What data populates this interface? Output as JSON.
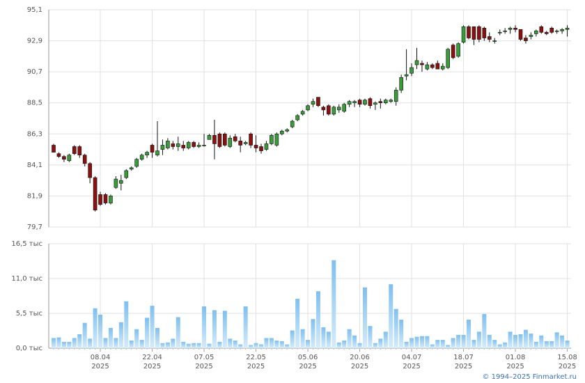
{
  "chart_data": [
    {
      "type": "candlestick",
      "x": [
        "26.03.2025",
        "27.03.2025",
        "28.03.2025",
        "31.03.2025",
        "01.04.2025",
        "02.04.2025",
        "03.04.2025",
        "04.04.2025",
        "07.04.2025",
        "08.04.2025",
        "09.04.2025",
        "10.04.2025",
        "11.04.2025",
        "14.04.2025",
        "15.04.2025",
        "16.04.2025",
        "17.04.2025",
        "18.04.2025",
        "21.04.2025",
        "22.04.2025",
        "23.04.2025",
        "24.04.2025",
        "25.04.2025",
        "28.04.2025",
        "29.04.2025",
        "30.04.2025",
        "02.05.2025",
        "05.05.2025",
        "06.05.2025",
        "07.05.2025",
        "08.05.2025",
        "12.05.2025",
        "13.05.2025",
        "14.05.2025",
        "15.05.2025",
        "16.05.2025",
        "19.05.2025",
        "20.05.2025",
        "21.05.2025",
        "22.05.2025",
        "23.05.2025",
        "26.05.2025",
        "27.05.2025",
        "28.05.2025",
        "29.05.2025",
        "30.05.2025",
        "02.06.2025",
        "03.06.2025",
        "04.06.2025",
        "05.06.2025",
        "06.06.2025",
        "09.06.2025",
        "10.06.2025",
        "11.06.2025",
        "13.06.2025",
        "16.06.2025",
        "17.06.2025",
        "18.06.2025",
        "19.06.2025",
        "20.06.2025",
        "23.06.2025",
        "24.06.2025",
        "25.06.2025",
        "26.06.2025",
        "27.06.2025",
        "30.06.2025",
        "01.07.2025",
        "02.07.2025",
        "03.07.2025",
        "04.07.2025",
        "07.07.2025",
        "08.07.2025",
        "09.07.2025",
        "10.07.2025",
        "11.07.2025",
        "14.07.2025",
        "15.07.2025",
        "16.07.2025",
        "17.07.2025",
        "18.07.2025",
        "21.07.2025",
        "22.07.2025",
        "23.07.2025",
        "24.07.2025",
        "25.07.2025",
        "28.07.2025",
        "29.07.2025",
        "30.07.2025",
        "31.07.2025",
        "01.08.2025",
        "04.08.2025",
        "05.08.2025",
        "06.08.2025",
        "07.08.2025",
        "08.08.2025",
        "11.08.2025",
        "12.08.2025",
        "13.08.2025",
        "14.08.2025",
        "15.08.2025"
      ],
      "open": [
        85.5,
        84.9,
        84.7,
        84.4,
        85.4,
        85.4,
        84.8,
        84.2,
        83.2,
        82.0,
        82.0,
        81.4,
        82.5,
        82.8,
        83.2,
        83.8,
        84.0,
        84.5,
        84.8,
        85.5,
        84.8,
        85.2,
        85.3,
        85.6,
        85.4,
        85.5,
        85.3,
        85.7,
        85.4,
        85.5,
        85.9,
        86.2,
        86.3,
        86.3,
        85.4,
        86.1,
        85.8,
        85.6,
        86.3,
        85.5,
        85.4,
        85.2,
        85.6,
        85.5,
        86.3,
        86.5,
        86.8,
        87.3,
        87.7,
        88.0,
        88.4,
        88.9,
        88.2,
        88.3,
        87.7,
        88.0,
        87.9,
        88.4,
        88.5,
        88.7,
        88.4,
        88.8,
        88.4,
        88.6,
        88.5,
        88.6,
        88.6,
        89.4,
        90.4,
        90.6,
        91.2,
        91.3,
        90.9,
        91.2,
        91.3,
        90.9,
        91.0,
        92.6,
        91.8,
        92.8,
        93.9,
        93.9,
        93.9,
        93.8,
        93.2,
        92.9,
        93.5,
        93.6,
        93.7,
        93.8,
        93.7,
        93.1,
        93.2,
        93.4,
        93.9,
        93.5,
        93.8,
        93.6,
        93.6,
        93.7
      ],
      "high": [
        85.6,
        85.0,
        84.8,
        84.9,
        85.5,
        85.5,
        84.9,
        84.3,
        83.3,
        82.2,
        82.1,
        82.0,
        83.3,
        83.4,
        83.8,
        84.0,
        84.6,
        84.9,
        85.1,
        85.6,
        87.2,
        85.9,
        86.0,
        85.8,
        86.1,
        85.8,
        85.8,
        85.8,
        85.7,
        86.3,
        86.3,
        87.3,
        86.4,
        86.4,
        86.2,
        86.3,
        86.1,
        85.8,
        86.4,
        86.2,
        85.6,
        85.8,
        86.3,
        86.4,
        86.6,
        86.7,
        87.3,
        87.7,
        88.0,
        88.4,
        88.8,
        88.9,
        88.3,
        88.4,
        88.3,
        88.4,
        88.5,
        88.7,
        88.7,
        88.8,
        88.8,
        88.9,
        88.6,
        88.8,
        88.8,
        88.8,
        89.6,
        90.5,
        92.3,
        91.3,
        92.4,
        91.5,
        91.4,
        91.3,
        91.5,
        91.3,
        92.4,
        92.7,
        92.8,
        94.0,
        94.0,
        93.9,
        94.0,
        93.9,
        93.5,
        93.1,
        93.7,
        93.8,
        93.9,
        94.0,
        93.7,
        93.3,
        93.5,
        93.7,
        94.0,
        93.6,
        93.9,
        93.7,
        93.8,
        94.0
      ],
      "low": [
        85.0,
        84.6,
        84.3,
        84.3,
        84.8,
        84.6,
        84.0,
        82.8,
        80.8,
        81.2,
        81.3,
        81.3,
        82.4,
        82.3,
        83.1,
        83.7,
        83.9,
        84.4,
        84.6,
        84.6,
        84.7,
        84.8,
        85.2,
        85.2,
        85.1,
        85.1,
        85.2,
        85.3,
        85.3,
        85.4,
        85.9,
        84.5,
        85.3,
        85.4,
        85.3,
        85.7,
        85.0,
        85.5,
        85.3,
        85.0,
        84.9,
        85.1,
        85.5,
        85.4,
        86.2,
        86.4,
        86.7,
        87.2,
        87.6,
        87.9,
        88.2,
        88.2,
        87.6,
        87.6,
        87.6,
        87.8,
        87.8,
        88.2,
        88.2,
        88.2,
        88.3,
        88.1,
        88.0,
        88.1,
        88.4,
        88.5,
        88.3,
        89.2,
        90.1,
        90.4,
        90.9,
        90.7,
        90.8,
        90.9,
        90.9,
        90.8,
        90.9,
        91.6,
        91.7,
        92.7,
        93.0,
        92.6,
        92.8,
        92.9,
        92.8,
        92.7,
        93.3,
        93.4,
        93.4,
        93.5,
        92.9,
        92.7,
        93.0,
        93.2,
        93.4,
        93.3,
        93.4,
        93.4,
        93.4,
        93.2
      ],
      "close": [
        85.0,
        84.7,
        84.5,
        84.8,
        84.9,
        84.8,
        84.2,
        83.2,
        80.9,
        81.3,
        81.4,
        81.9,
        83.1,
        83.0,
        83.7,
        83.9,
        84.5,
        84.8,
        85.0,
        85.0,
        85.1,
        85.5,
        85.8,
        85.4,
        85.6,
        85.3,
        85.7,
        85.4,
        85.5,
        85.5,
        86.2,
        85.6,
        85.4,
        85.5,
        86.0,
        85.8,
        85.5,
        85.7,
        85.5,
        85.3,
        85.1,
        85.6,
        86.2,
        86.3,
        86.5,
        86.6,
        87.2,
        87.6,
        87.9,
        88.3,
        88.6,
        88.3,
        88.0,
        87.7,
        88.2,
        88.2,
        88.4,
        88.6,
        88.6,
        88.4,
        88.7,
        88.3,
        88.5,
        88.5,
        88.7,
        88.7,
        89.4,
        90.3,
        90.5,
        91.0,
        91.5,
        91.2,
        91.2,
        91.0,
        90.9,
        91.1,
        92.3,
        91.7,
        92.7,
        93.9,
        93.1,
        93.0,
        93.0,
        93.1,
        93.0,
        92.9,
        93.5,
        93.6,
        93.8,
        93.7,
        93.0,
        92.9,
        93.3,
        93.6,
        93.5,
        93.4,
        93.5,
        93.6,
        93.7,
        93.8
      ],
      "up_color": "#3a9b3a",
      "down_color": "#8b1111",
      "ylim": [
        79.7,
        95.1
      ],
      "yticks": [
        {
          "value": 79.7,
          "label": "79,7"
        },
        {
          "value": 81.9,
          "label": "81,9"
        },
        {
          "value": 84.1,
          "label": "84,1"
        },
        {
          "value": 86.3,
          "label": "86,3"
        },
        {
          "value": 88.5,
          "label": "88,5"
        },
        {
          "value": 90.7,
          "label": "90,7"
        },
        {
          "value": 92.9,
          "label": "92,9"
        },
        {
          "value": 95.1,
          "label": "95,1"
        }
      ],
      "xticks": [
        {
          "value": "08.04.2025",
          "label": [
            "08.04",
            "2025"
          ]
        },
        {
          "value": "22.04.2025",
          "label": [
            "22.04",
            "2025"
          ]
        },
        {
          "value": "07.05.2025",
          "label": [
            "07.05",
            "2025"
          ]
        },
        {
          "value": "22.05.2025",
          "label": [
            "22.05",
            "2025"
          ]
        },
        {
          "value": "05.06.2025",
          "label": [
            "05.06",
            "2025"
          ]
        },
        {
          "value": "20.06.2025",
          "label": [
            "20.06",
            "2025"
          ]
        },
        {
          "value": "04.07.2025",
          "label": [
            "04.07",
            "2025"
          ]
        },
        {
          "value": "18.07.2025",
          "label": [
            "18.07",
            "2025"
          ]
        },
        {
          "value": "01.08.2025",
          "label": [
            "01.08",
            "2025"
          ]
        },
        {
          "value": "15.08.2025",
          "label": [
            "15.08",
            "2025"
          ]
        }
      ],
      "grid": true
    },
    {
      "type": "bar",
      "values": [
        1.6,
        1.7,
        1.0,
        1.0,
        1.6,
        2.2,
        4.0,
        1.5,
        6.3,
        5.3,
        1.6,
        3.2,
        1.6,
        4.1,
        7.4,
        1.2,
        3.0,
        1.3,
        4.8,
        6.7,
        3.2,
        0.8,
        0.9,
        1.5,
        4.9,
        1.0,
        0.7,
        0.8,
        0.8,
        6.6,
        0.7,
        6.0,
        1.0,
        5.9,
        1.5,
        1.2,
        0.6,
        6.6,
        0.5,
        0.8,
        0.6,
        1.6,
        1.6,
        1.2,
        1.1,
        0.6,
        2.8,
        7.8,
        3.0,
        1.3,
        4.6,
        9.0,
        3.3,
        2.6,
        13.9,
        0.9,
        1.2,
        3.0,
        2.0,
        0.8,
        9.6,
        3.5,
        0.8,
        1.5,
        2.6,
        10.1,
        6.2,
        4.5,
        1.0,
        1.6,
        1.8,
        1.9,
        1.9,
        0.6,
        1.3,
        1.3,
        0.5,
        1.6,
        2.1,
        2.1,
        4.5,
        1.3,
        2.6,
        5.4,
        2.1,
        1.3,
        0.6,
        0.9,
        2.6,
        2.1,
        2.2,
        2.9,
        2.3,
        1.0,
        2.0,
        1.1,
        1.1,
        2.5,
        2.0,
        1.2
      ],
      "color": "#8cc8f0",
      "ylim": [
        0,
        16.5
      ],
      "yticks": [
        {
          "value": 0,
          "label": "0,0 тыс"
        },
        {
          "value": 5.5,
          "label": "5,5 тыс"
        },
        {
          "value": 11,
          "label": "11,0 тыс"
        },
        {
          "value": 16.5,
          "label": "16,5 тыс"
        }
      ],
      "grid": true
    }
  ],
  "footer": "© 1994–2025 Finmarket.ru"
}
